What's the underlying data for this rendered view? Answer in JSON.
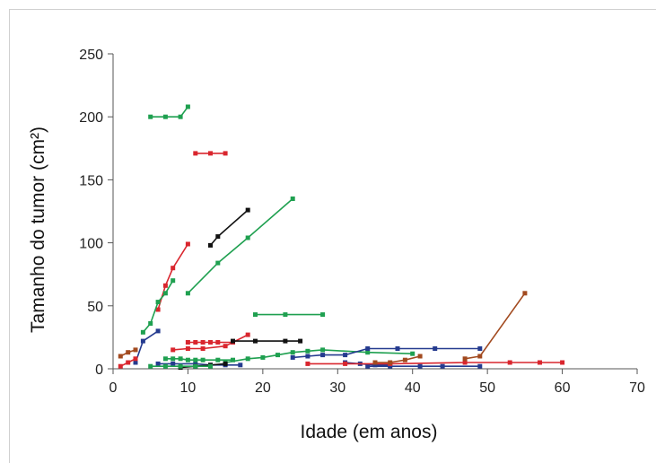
{
  "chart_data": {
    "type": "line",
    "title": "",
    "xlabel": "Idade (em anos)",
    "ylabel": "Tamanho do tumor (cm²)",
    "xlim": [
      0,
      70
    ],
    "ylim": [
      0,
      250
    ],
    "xticks": [
      0,
      10,
      20,
      30,
      40,
      50,
      60,
      70
    ],
    "yticks": [
      0,
      50,
      100,
      150,
      200,
      250
    ],
    "grid": false,
    "series": [
      {
        "color": "#1fa050",
        "x": [
          5,
          7,
          9,
          10
        ],
        "y": [
          200,
          200,
          200,
          208
        ]
      },
      {
        "color": "#d9262e",
        "x": [
          11,
          13,
          15
        ],
        "y": [
          171,
          171,
          171
        ]
      },
      {
        "color": "#111111",
        "x": [
          13,
          14,
          18
        ],
        "y": [
          98,
          105,
          126
        ]
      },
      {
        "color": "#1fa050",
        "x": [
          10,
          14,
          18,
          24
        ],
        "y": [
          60,
          84,
          104,
          135
        ]
      },
      {
        "color": "#d9262e",
        "x": [
          6,
          7,
          8,
          10
        ],
        "y": [
          47,
          66,
          80,
          99
        ]
      },
      {
        "color": "#1fa050",
        "x": [
          4,
          5,
          6,
          7,
          8
        ],
        "y": [
          29,
          36,
          53,
          60,
          70
        ]
      },
      {
        "color": "#1fa050",
        "x": [
          19,
          23,
          28
        ],
        "y": [
          43,
          43,
          43
        ]
      },
      {
        "color": "#253b8f",
        "x": [
          3,
          4,
          6
        ],
        "y": [
          5,
          22,
          30
        ]
      },
      {
        "color": "#a24a1f",
        "x": [
          1,
          2,
          3
        ],
        "y": [
          10,
          13,
          15
        ]
      },
      {
        "color": "#d9262e",
        "x": [
          1,
          2,
          3
        ],
        "y": [
          2,
          5,
          8
        ]
      },
      {
        "color": "#d9262e",
        "x": [
          8,
          10,
          12,
          15,
          18
        ],
        "y": [
          15,
          16,
          16,
          18,
          27
        ]
      },
      {
        "color": "#d9262e",
        "x": [
          10,
          11,
          12,
          13,
          14,
          16
        ],
        "y": [
          21,
          21,
          21,
          21,
          21,
          21
        ]
      },
      {
        "color": "#111111",
        "x": [
          16,
          19,
          23,
          25
        ],
        "y": [
          22,
          22,
          22,
          22
        ]
      },
      {
        "color": "#1fa050",
        "x": [
          15,
          18,
          20,
          22,
          24,
          26,
          28,
          34,
          40
        ],
        "y": [
          5,
          8,
          9,
          11,
          13,
          14,
          15,
          13,
          12
        ]
      },
      {
        "color": "#253b8f",
        "x": [
          24,
          26,
          28,
          31,
          34,
          38,
          43,
          49
        ],
        "y": [
          9,
          10,
          11,
          11,
          16,
          16,
          16,
          16
        ]
      },
      {
        "color": "#253b8f",
        "x": [
          6,
          8,
          11,
          13,
          15,
          17
        ],
        "y": [
          4,
          4,
          4,
          3,
          3,
          3
        ]
      },
      {
        "color": "#1fa050",
        "x": [
          7,
          8,
          9,
          10,
          11,
          12,
          14,
          16
        ],
        "y": [
          8,
          8,
          8,
          7,
          7,
          7,
          7,
          7
        ]
      },
      {
        "color": "#111111",
        "x": [
          9,
          11,
          13,
          15
        ],
        "y": [
          1,
          2,
          3,
          4
        ]
      },
      {
        "color": "#1fa050",
        "x": [
          5,
          7,
          9,
          11,
          13
        ],
        "y": [
          2,
          2,
          2,
          2,
          2
        ]
      },
      {
        "color": "#253b8f",
        "x": [
          31,
          33,
          35,
          37
        ],
        "y": [
          5,
          4,
          3,
          3
        ]
      },
      {
        "color": "#253b8f",
        "x": [
          34,
          37,
          41,
          44,
          49
        ],
        "y": [
          2,
          2,
          2,
          2,
          2
        ]
      },
      {
        "color": "#d9262e",
        "x": [
          26,
          31,
          37,
          47,
          53,
          57,
          60
        ],
        "y": [
          4,
          4,
          4,
          5,
          5,
          5,
          5
        ]
      },
      {
        "color": "#a24a1f",
        "x": [
          35,
          37,
          39,
          41
        ],
        "y": [
          5,
          5,
          7,
          10
        ]
      },
      {
        "color": "#a24a1f",
        "x": [
          47,
          49,
          55
        ],
        "y": [
          8,
          10,
          60
        ]
      }
    ]
  }
}
